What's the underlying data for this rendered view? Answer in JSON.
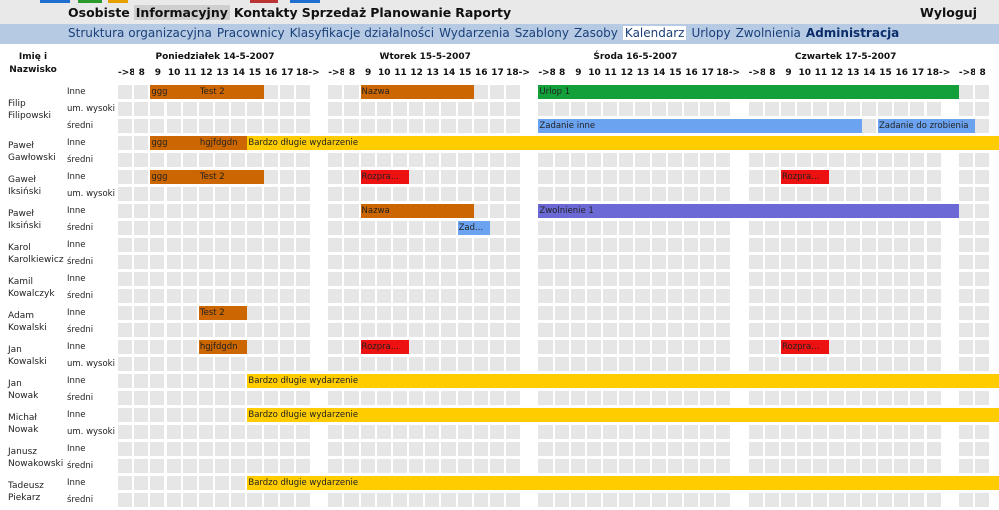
{
  "topbar": {
    "menu": [
      {
        "label": "Osobiste",
        "active": false
      },
      {
        "label": "Informacyjny",
        "active": true
      },
      {
        "label": "Kontakty",
        "active": false
      },
      {
        "label": "Sprzedaż",
        "active": false
      },
      {
        "label": "Planowanie",
        "active": false
      },
      {
        "label": "Raporty",
        "active": false
      }
    ],
    "logout_label": "Wyloguj"
  },
  "submenu": {
    "items": [
      {
        "label": "Struktura organizacyjna",
        "active": false
      },
      {
        "label": "Pracownicy",
        "active": false
      },
      {
        "label": "Klasyfikacje działalności",
        "active": false
      },
      {
        "label": "Wydarzenia",
        "active": false
      },
      {
        "label": "Szablony",
        "active": false
      },
      {
        "label": "Zasoby",
        "active": false
      },
      {
        "label": "Kalendarz",
        "active": true
      },
      {
        "label": "Urlopy",
        "active": false
      },
      {
        "label": "Zwolnienia",
        "active": false
      },
      {
        "label": "Administracja",
        "active": false,
        "bold": true
      }
    ]
  },
  "calendar": {
    "header_name_line1": "Imię i",
    "header_name_line2": "Nazwisko",
    "days": [
      "Poniedziałek 14-5-2007",
      "Wtorek 15-5-2007",
      "Środa 16-5-2007",
      "Czwartek 17-5-2007"
    ],
    "slots": [
      "->8",
      "8",
      "9",
      "10",
      "11",
      "12",
      "13",
      "14",
      "15",
      "16",
      "17",
      "18->"
    ],
    "extra_slots": [
      "->8",
      "8"
    ],
    "rows": [
      {
        "first": "Filip",
        "last": "Filipowski",
        "labels": [
          "Inne",
          "um. wysoki",
          "średni"
        ]
      },
      {
        "first": "Paweł",
        "last": "Gawłowski",
        "labels": [
          "Inne",
          "średni"
        ]
      },
      {
        "first": "Gaweł",
        "last": "Iksiński",
        "labels": [
          "Inne",
          "um. wysoki"
        ]
      },
      {
        "first": "Paweł",
        "last": "Iksiński",
        "labels": [
          "Inne",
          "średni"
        ]
      },
      {
        "first": "Karol",
        "last": "Karolkiewicz",
        "labels": [
          "Inne",
          "średni"
        ]
      },
      {
        "first": "Kamil",
        "last": "Kowalczyk",
        "labels": [
          "Inne",
          "średni"
        ]
      },
      {
        "first": "Adam",
        "last": "Kowalski",
        "labels": [
          "Inne",
          "średni"
        ]
      },
      {
        "first": "Jan",
        "last": "Kowalski",
        "labels": [
          "Inne",
          "um. wysoki"
        ]
      },
      {
        "first": "Jan",
        "last": "Nowak",
        "labels": [
          "Inne",
          "średni"
        ]
      },
      {
        "first": "Michał",
        "last": "Nowak",
        "labels": [
          "Inne",
          "um. wysoki"
        ]
      },
      {
        "first": "Janusz",
        "last": "Nowakowski",
        "labels": [
          "Inne",
          "średni"
        ]
      },
      {
        "first": "Tadeusz",
        "last": "Piekarz",
        "labels": [
          "Inne",
          "średni"
        ]
      }
    ],
    "events": [
      {
        "row": 0,
        "line": 0,
        "day": 0,
        "start": 2,
        "span": 3,
        "label": "ggg",
        "color": "#cc6600"
      },
      {
        "row": 0,
        "line": 0,
        "day": 0,
        "start": 5,
        "span": 4,
        "label": "Test 2",
        "color": "#cc6600"
      },
      {
        "row": 0,
        "line": 0,
        "day": 1,
        "start": 2,
        "span": 7,
        "label": "Nazwa",
        "color": "#cc6600"
      },
      {
        "row": 0,
        "line": 0,
        "day": 2,
        "start": 0,
        "span": 26,
        "label": "Urlop 1",
        "color": "#13a03a"
      },
      {
        "row": 0,
        "line": 2,
        "day": 2,
        "start": 0,
        "span": 20,
        "label": "Zadanie inne",
        "color": "#6ba3f0"
      },
      {
        "row": 0,
        "line": 2,
        "day": 3,
        "start": 8,
        "span": 6,
        "label": "Zadanie do zrobienia",
        "color": "#6ba3f0"
      },
      {
        "row": 1,
        "line": 0,
        "day": 0,
        "start": 2,
        "span": 3,
        "label": "ggg",
        "color": "#cc6600"
      },
      {
        "row": 1,
        "line": 0,
        "day": 0,
        "start": 5,
        "span": 3,
        "label": "hgjfdgdn",
        "color": "#cc6600"
      },
      {
        "row": 1,
        "line": 0,
        "day": 0,
        "start": 8,
        "span": 50,
        "label": "Bardzo długie wydarzenie",
        "color": "#ffcc00"
      },
      {
        "row": 2,
        "line": 0,
        "day": 0,
        "start": 2,
        "span": 3,
        "label": "ggg",
        "color": "#cc6600"
      },
      {
        "row": 2,
        "line": 0,
        "day": 0,
        "start": 5,
        "span": 4,
        "label": "Test 2",
        "color": "#cc6600"
      },
      {
        "row": 2,
        "line": 0,
        "day": 1,
        "start": 2,
        "span": 3,
        "label": "Rozpra...",
        "color": "#ee1111"
      },
      {
        "row": 2,
        "line": 0,
        "day": 3,
        "start": 2,
        "span": 3,
        "label": "Rozpra...",
        "color": "#ee1111"
      },
      {
        "row": 3,
        "line": 0,
        "day": 1,
        "start": 2,
        "span": 7,
        "label": "Nazwa",
        "color": "#cc6600"
      },
      {
        "row": 3,
        "line": 0,
        "day": 2,
        "start": 0,
        "span": 26,
        "label": "Zwolnienie 1",
        "color": "#6b69d6"
      },
      {
        "row": 3,
        "line": 1,
        "day": 1,
        "start": 8,
        "span": 2,
        "label": "Zad...",
        "color": "#6ba3f0"
      },
      {
        "row": 6,
        "line": 0,
        "day": 0,
        "start": 5,
        "span": 3,
        "label": "Test 2",
        "color": "#cc6600"
      },
      {
        "row": 7,
        "line": 0,
        "day": 0,
        "start": 5,
        "span": 3,
        "label": "hgjfdgdn",
        "color": "#cc6600"
      },
      {
        "row": 7,
        "line": 0,
        "day": 1,
        "start": 2,
        "span": 3,
        "label": "Rozpra...",
        "color": "#ee1111"
      },
      {
        "row": 7,
        "line": 0,
        "day": 3,
        "start": 2,
        "span": 3,
        "label": "Rozpra...",
        "color": "#ee1111"
      },
      {
        "row": 8,
        "line": 0,
        "day": 0,
        "start": 8,
        "span": 50,
        "label": "Bardzo długie wydarzenie",
        "color": "#ffcc00"
      },
      {
        "row": 9,
        "line": 0,
        "day": 0,
        "start": 8,
        "span": 50,
        "label": "Bardzo długie wydarzenie",
        "color": "#ffcc00"
      },
      {
        "row": 11,
        "line": 0,
        "day": 0,
        "start": 8,
        "span": 50,
        "label": "Bardzo długie wydarzenie",
        "color": "#ffcc00"
      }
    ]
  },
  "colors": {
    "topbar": "#e9e9e9",
    "submenu": "#b6cbe3",
    "cell": "#e6e6e6"
  }
}
